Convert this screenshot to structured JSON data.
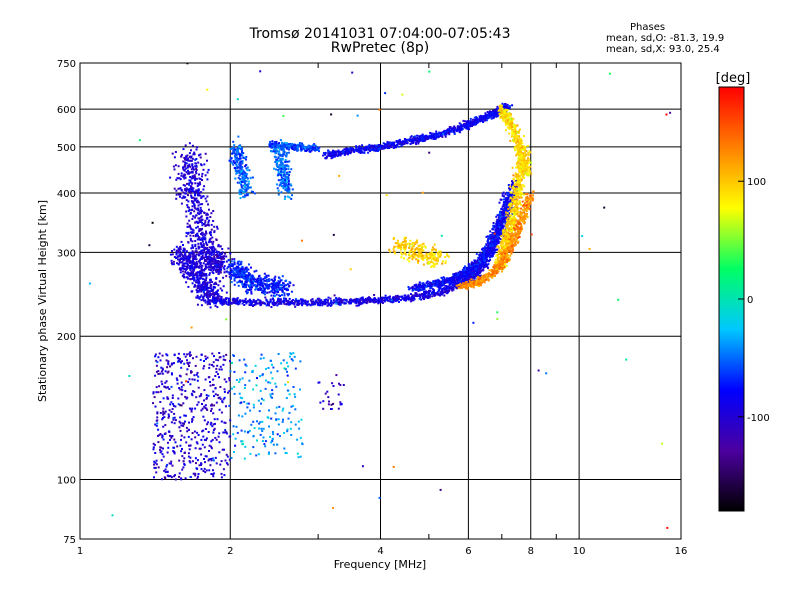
{
  "chart_data": {
    "type": "scatter",
    "title": "Tromsø 20141031 07:04:00-07:05:43",
    "subtitle": "RwPretec (8p)",
    "xlabel": "Frequency [MHz]",
    "ylabel": "Stationary phase Virtual Height [km]",
    "xscale": "log",
    "yscale": "log",
    "xlim": [
      1,
      16
    ],
    "ylim": [
      75,
      750
    ],
    "x_ticks": [
      1,
      2,
      4,
      6,
      8,
      10,
      16
    ],
    "x_minor_ticks": [
      3,
      5,
      7,
      9
    ],
    "y_ticks": [
      75,
      100,
      200,
      300,
      400,
      500,
      600,
      750
    ],
    "grid": true,
    "legend": {
      "title": "Phases",
      "lines": [
        "mean, sd,O: -81.3, 19.9",
        "mean, sd,X:  93.0, 25.4"
      ],
      "placement": "top-right"
    },
    "colorbar": {
      "label": "[deg]",
      "range": [
        -180,
        180
      ],
      "ticks": [
        100,
        0,
        -100
      ],
      "colors": [
        "#000000",
        "#4b00a0",
        "#0000ff",
        "#00c8ff",
        "#00ff64",
        "#ffff00",
        "#ff8000",
        "#ff0000"
      ]
    },
    "series": [
      {
        "kind": "trace",
        "f": [
          1.65,
          1.68,
          1.7,
          1.75,
          1.8,
          1.85,
          1.9
        ],
        "h": [
          480,
          430,
          380,
          330,
          300,
          285,
          280
        ],
        "phase": -100,
        "spread": [
          0.06,
          0.06
        ]
      },
      {
        "kind": "trace",
        "f": [
          1.6,
          1.65,
          1.72,
          1.8,
          1.85
        ],
        "h": [
          300,
          285,
          265,
          250,
          240
        ],
        "phase": -95,
        "spread": [
          0.05,
          0.05
        ]
      },
      {
        "kind": "trace",
        "f": [
          1.85,
          2.2,
          2.7,
          3.3,
          3.9,
          4.6,
          5.3,
          5.8,
          6.2,
          6.5,
          6.8,
          7.1,
          7.4
        ],
        "h": [
          238,
          236,
          235,
          236,
          238,
          241,
          248,
          258,
          270,
          290,
          320,
          360,
          420
        ],
        "phase": -90,
        "spread": [
          0.025,
          0.015
        ]
      },
      {
        "kind": "trace",
        "f": [
          4.6,
          5.2,
          5.7,
          6.0,
          6.4,
          6.7,
          7.0,
          7.3
        ],
        "h": [
          252,
          258,
          265,
          275,
          290,
          315,
          350,
          400
        ],
        "phase": -80,
        "spread": [
          0.025,
          0.015
        ]
      },
      {
        "kind": "trace",
        "f": [
          6.9,
          7.1,
          7.3,
          7.45,
          7.6,
          7.75
        ],
        "h": [
          280,
          310,
          340,
          380,
          430,
          500
        ],
        "phase": 95,
        "spread": [
          0.025,
          0.02
        ]
      },
      {
        "kind": "trace",
        "f": [
          5.8,
          6.3,
          6.8,
          7.2,
          7.6,
          8.0
        ],
        "h": [
          255,
          260,
          275,
          300,
          340,
          400
        ],
        "phase": 125,
        "spread": [
          0.02,
          0.015
        ]
      },
      {
        "kind": "trace",
        "f": [
          3.1,
          3.5,
          4.0,
          4.6,
          5.2,
          5.8,
          6.3,
          6.8,
          7.2
        ],
        "h": [
          480,
          490,
          500,
          515,
          530,
          550,
          570,
          590,
          610
        ],
        "phase": -85,
        "spread": [
          0.015,
          0.015
        ]
      },
      {
        "kind": "trace",
        "f": [
          2.4,
          2.7,
          3.0
        ],
        "h": [
          505,
          500,
          495
        ],
        "phase": -60,
        "spread": [
          0.015,
          0.015
        ]
      },
      {
        "kind": "trace",
        "f": [
          7.0,
          7.3,
          7.6,
          7.9
        ],
        "h": [
          600,
          560,
          500,
          440
        ],
        "phase": 90,
        "spread": [
          0.02,
          0.02
        ]
      },
      {
        "kind": "trace",
        "f": [
          2.5,
          2.55,
          2.6
        ],
        "h": [
          500,
          450,
          400
        ],
        "phase": -50,
        "spread": [
          0.03,
          0.04
        ]
      },
      {
        "kind": "trace",
        "f": [
          2.05,
          2.1,
          2.15
        ],
        "h": [
          500,
          450,
          400
        ],
        "phase": -55,
        "spread": [
          0.03,
          0.04
        ]
      },
      {
        "kind": "trace",
        "f": [
          2.05,
          2.1,
          2.2,
          2.4,
          2.6
        ],
        "h": [
          280,
          270,
          260,
          255,
          250
        ],
        "phase": -70,
        "spread": [
          0.04,
          0.04
        ]
      },
      {
        "kind": "trace",
        "f": [
          4.3,
          4.8,
          5.3
        ],
        "h": [
          310,
          300,
          290
        ],
        "phase": 95,
        "spread": [
          0.04,
          0.04
        ]
      },
      {
        "kind": "cloud",
        "f": [
          1.4,
          2.0
        ],
        "h": [
          100,
          185
        ],
        "phase": -100,
        "count": 520
      },
      {
        "kind": "cloud",
        "f": [
          2.0,
          2.8
        ],
        "h": [
          110,
          185
        ],
        "phase": -40,
        "count": 200
      },
      {
        "kind": "cloud",
        "f": [
          3.0,
          3.4
        ],
        "h": [
          140,
          160
        ],
        "phase": -100,
        "count": 25
      },
      {
        "kind": "cloud",
        "f": [
          1.0,
          16.0
        ],
        "h": [
          75,
          750
        ],
        "phase": 0,
        "count": 60
      }
    ]
  }
}
